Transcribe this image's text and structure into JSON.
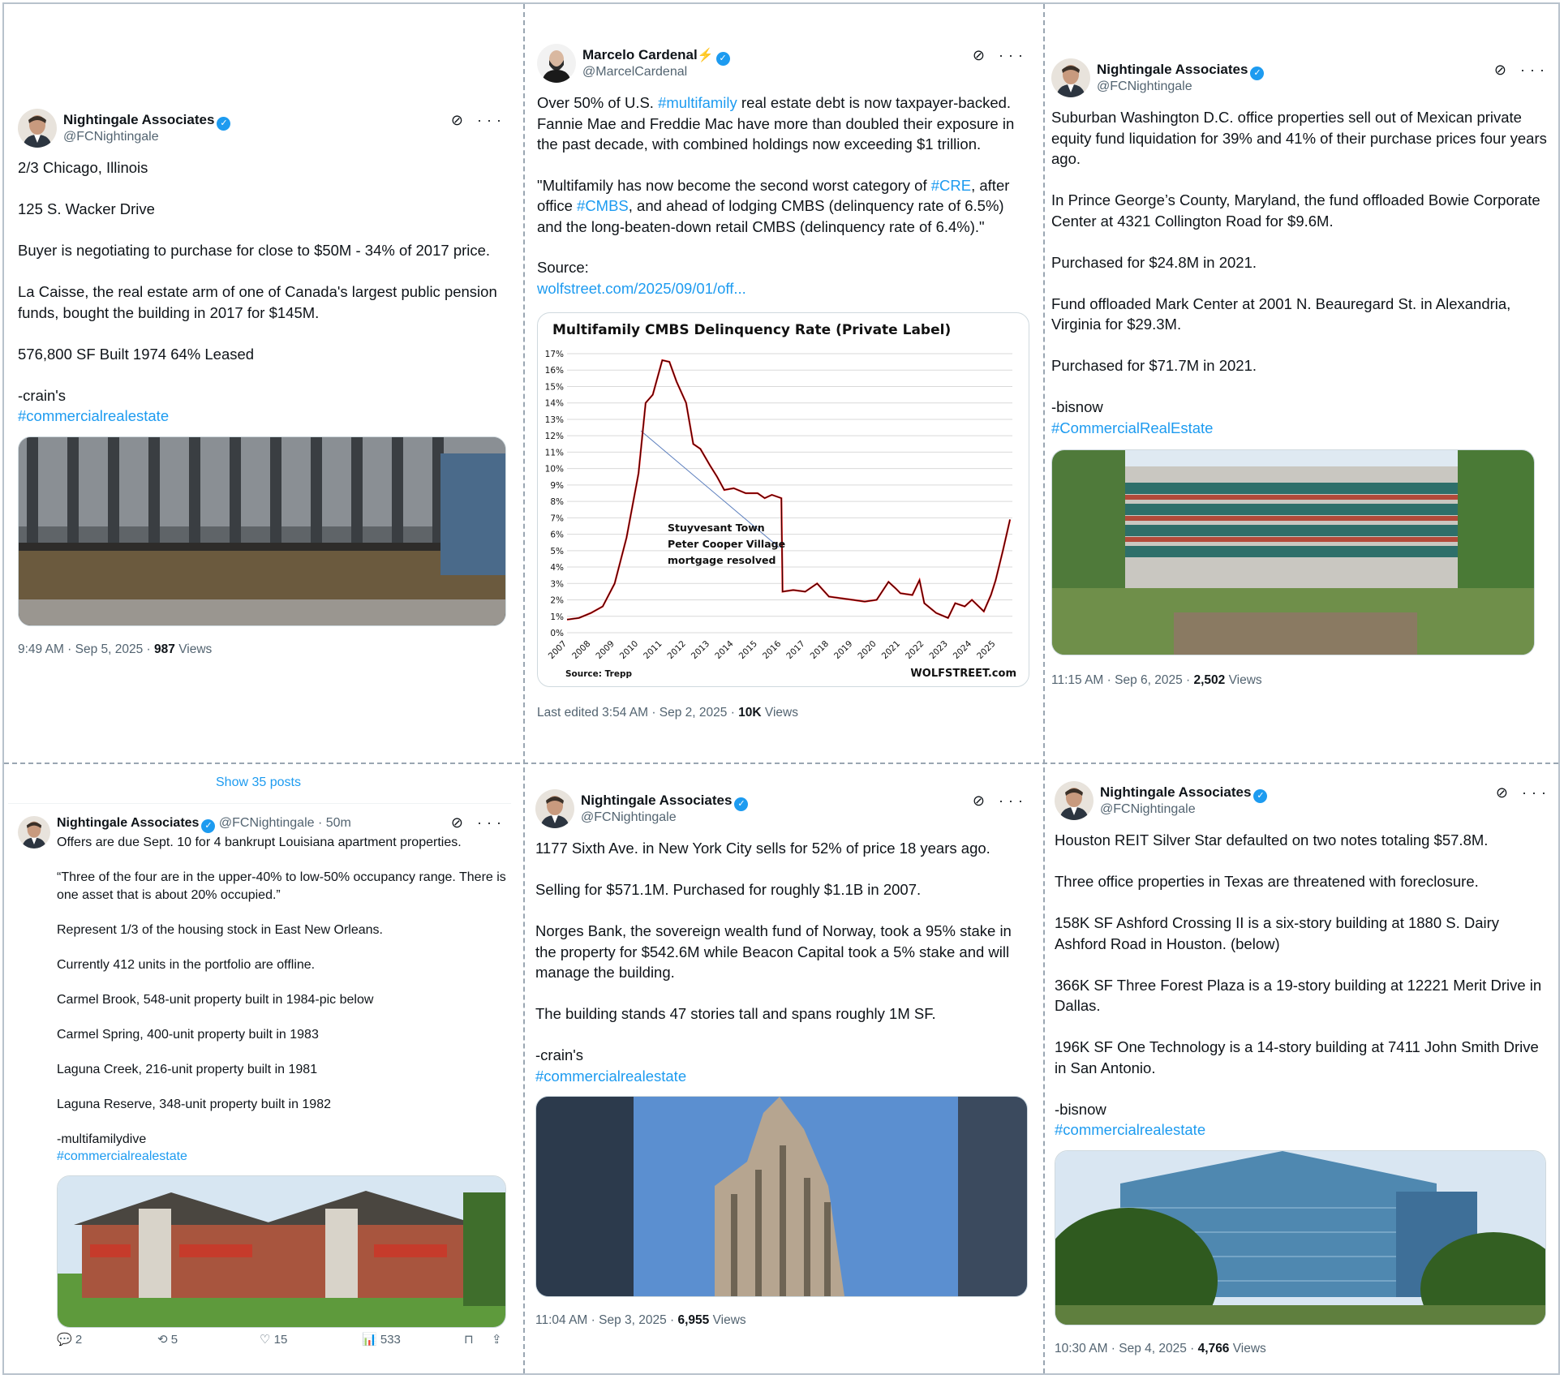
{
  "tweets": {
    "t1": {
      "name": "Nightingale Associates",
      "handle": "@FCNightingale",
      "text": "2/3 Chicago, Illinois\n\n125 S. Wacker Drive\n\nBuyer is negotiating to purchase for close to $50M - 34% of 2017 price.\n\nLa Caisse, the real estate arm of one of Canada's largest public pension funds, bought the building in 2017 for $145M.\n\n576,800 SF   Built 1974   64% Leased\n\n-crain's",
      "hashtag": "#commercialrealestate",
      "time": "9:49 AM · Sep 5, 2025 · ",
      "views": "987",
      "views_label": " Views"
    },
    "t2": {
      "name": "Marcelo Cardenal",
      "bolt": "⚡",
      "handle": "@MarcelCardenal",
      "text_before": "Over 50% of U.S. ",
      "tag1": "#multifamily",
      "text_after1": " real estate debt is now taxpayer-backed. Fannie Mae and Freddie Mac have more than doubled their exposure in the past decade, with combined holdings now exceeding $1 trillion.",
      "quote_before": "\"Multifamily has now become the second worst category of ",
      "tag2": "#CRE",
      "quote_mid": ", after office ",
      "tag3": "#CMBS",
      "quote_after": ", and ahead of lodging CMBS (delinquency rate of 6.5%) and the long-beaten-down retail CMBS (delinquency rate of 6.4%).\"",
      "source_label": "Source:",
      "source_link": "wolfstreet.com/2025/09/01/off...",
      "time": "Last edited 3:54 AM · Sep 2, 2025 · ",
      "views": "10K",
      "views_label": " Views"
    },
    "t3": {
      "name": "Nightingale Associates",
      "handle": "@FCNightingale",
      "text": "Suburban Washington D.C. office properties sell out of Mexican private equity fund liquidation for 39% and 41% of their purchase prices four years ago.\n\nIn Prince George’s County, Maryland, the fund offloaded Bowie Corporate Center at 4321 Collington Road for $9.6M.\n\nPurchased for $24.8M in 2021.\n\nFund offloaded Mark Center at 2001 N. Beauregard St. in Alexandria, Virginia for $29.3M.\n\nPurchased for $71.7M in 2021.\n\n-bisnow",
      "hashtag": "#CommercialRealEstate",
      "time": "11:15 AM · Sep 6, 2025 · ",
      "views": "2,502",
      "views_label": " Views"
    },
    "t4": {
      "show_posts": "Show 35 posts",
      "name": "Nightingale Associates",
      "handle_time": "@FCNightingale · 50m",
      "text": "Offers are due Sept. 10 for 4 bankrupt Louisiana apartment properties.\n\n“Three of the four are in the upper-40% to low-50% occupancy range. There is one asset that is about 20% occupied.”\n\nRepresent 1/3 of the housing stock in East New Orleans.\n\nCurrently 412 units in the portfolio are offline.\n\nCarmel Brook, 548-unit property built in 1984-pic below\n\nCarmel Spring, 400-unit property built in 1983\n\nLaguna Creek, 216-unit property built in 1981\n\nLaguna Reserve, 348-unit property built in 1982\n\n-multifamilydive",
      "hashtag": "#commercialrealestate",
      "replies": "2",
      "reposts": "5",
      "likes": "15",
      "views": "533"
    },
    "t5": {
      "name": "Nightingale Associates",
      "handle": "@FCNightingale",
      "text": "1177 Sixth Ave. in New York City sells for 52% of price 18 years ago.\n\nSelling for $571.1M.  Purchased for roughly $1.1B in 2007.\n\nNorges Bank, the sovereign wealth fund of Norway, took a 95% stake in the property for $542.6M while Beacon Capital took a 5% stake and will manage the building.\n\nThe building stands 47 stories tall and spans roughly 1M SF.\n\n-crain's",
      "hashtag": "#commercialrealestate",
      "time": "11:04 AM · Sep 3, 2025 · ",
      "views": "6,955",
      "views_label": " Views"
    },
    "t6": {
      "name": "Nightingale Associates",
      "handle": "@FCNightingale",
      "text": "Houston REIT Silver Star defaulted on two notes totaling $57.8M.\n\nThree office properties in Texas are threatened with foreclosure.\n\n158K SF Ashford Crossing II is a six-story building at 1880 S. Dairy Ashford Road in Houston. (below)\n\n366K SF Three Forest Plaza is a 19-story building at 12221 Merit Drive in Dallas.\n\n196K SF One Technology is a 14-story building at 7411 John Smith Drive in San Antonio.\n\n-bisnow",
      "hashtag": "#commercialrealestate",
      "time": "10:30 AM · Sep 4, 2025 · ",
      "views": "4,766",
      "views_label": " Views"
    }
  },
  "icons": {
    "grok": "⊘",
    "more": "···",
    "verified": "✓",
    "reply": "💬",
    "repost": "⟲",
    "like": "♡",
    "views": "📊",
    "bookmark": "⊓",
    "share": "⇪"
  },
  "chart_data": {
    "type": "line",
    "title": "Multifamily CMBS Delinquency Rate (Private Label)",
    "source": "Source: Trepp",
    "watermark": "WOLFSTREET.com",
    "annotation": [
      "Stuyvesant Town",
      "Peter Cooper Village",
      "mortgage resolved"
    ],
    "ylim": [
      0,
      17
    ],
    "yticks": [
      "0%",
      "1%",
      "2%",
      "3%",
      "4%",
      "5%",
      "6%",
      "7%",
      "8%",
      "9%",
      "10%",
      "11%",
      "12%",
      "13%",
      "14%",
      "15%",
      "16%",
      "17%"
    ],
    "xticks": [
      "2007",
      "2008",
      "2009",
      "2010",
      "2011",
      "2012",
      "2013",
      "2014",
      "2015",
      "2016",
      "2017",
      "2018",
      "2019",
      "2020",
      "2021",
      "2022",
      "2023",
      "2024",
      "2025"
    ],
    "x": [
      2007.0,
      2007.5,
      2008.0,
      2008.5,
      2009.0,
      2009.5,
      2010.0,
      2010.3,
      2010.6,
      2011.0,
      2011.3,
      2011.6,
      2012.0,
      2012.3,
      2012.6,
      2013.0,
      2013.3,
      2013.6,
      2014.0,
      2014.5,
      2015.0,
      2015.3,
      2015.6,
      2016.0,
      2016.05,
      2016.5,
      2017.0,
      2017.5,
      2018.0,
      2018.5,
      2019.0,
      2019.5,
      2020.0,
      2020.5,
      2020.8,
      2021.0,
      2021.5,
      2021.8,
      2022.0,
      2022.5,
      2023.0,
      2023.3,
      2023.7,
      2024.0,
      2024.5,
      2024.8,
      2025.0,
      2025.3,
      2025.6
    ],
    "values": [
      0.8,
      0.9,
      1.2,
      1.6,
      3.0,
      5.8,
      9.7,
      14.0,
      14.5,
      16.6,
      16.5,
      15.3,
      14.0,
      11.5,
      11.2,
      10.2,
      9.5,
      8.7,
      8.8,
      8.5,
      8.5,
      8.2,
      8.4,
      8.2,
      2.5,
      2.6,
      2.5,
      3.0,
      2.2,
      2.1,
      2.0,
      1.9,
      2.0,
      3.1,
      2.7,
      2.4,
      2.3,
      3.2,
      1.8,
      1.2,
      0.9,
      1.8,
      1.6,
      2.0,
      1.3,
      2.3,
      3.2,
      5.0,
      6.9
    ]
  }
}
